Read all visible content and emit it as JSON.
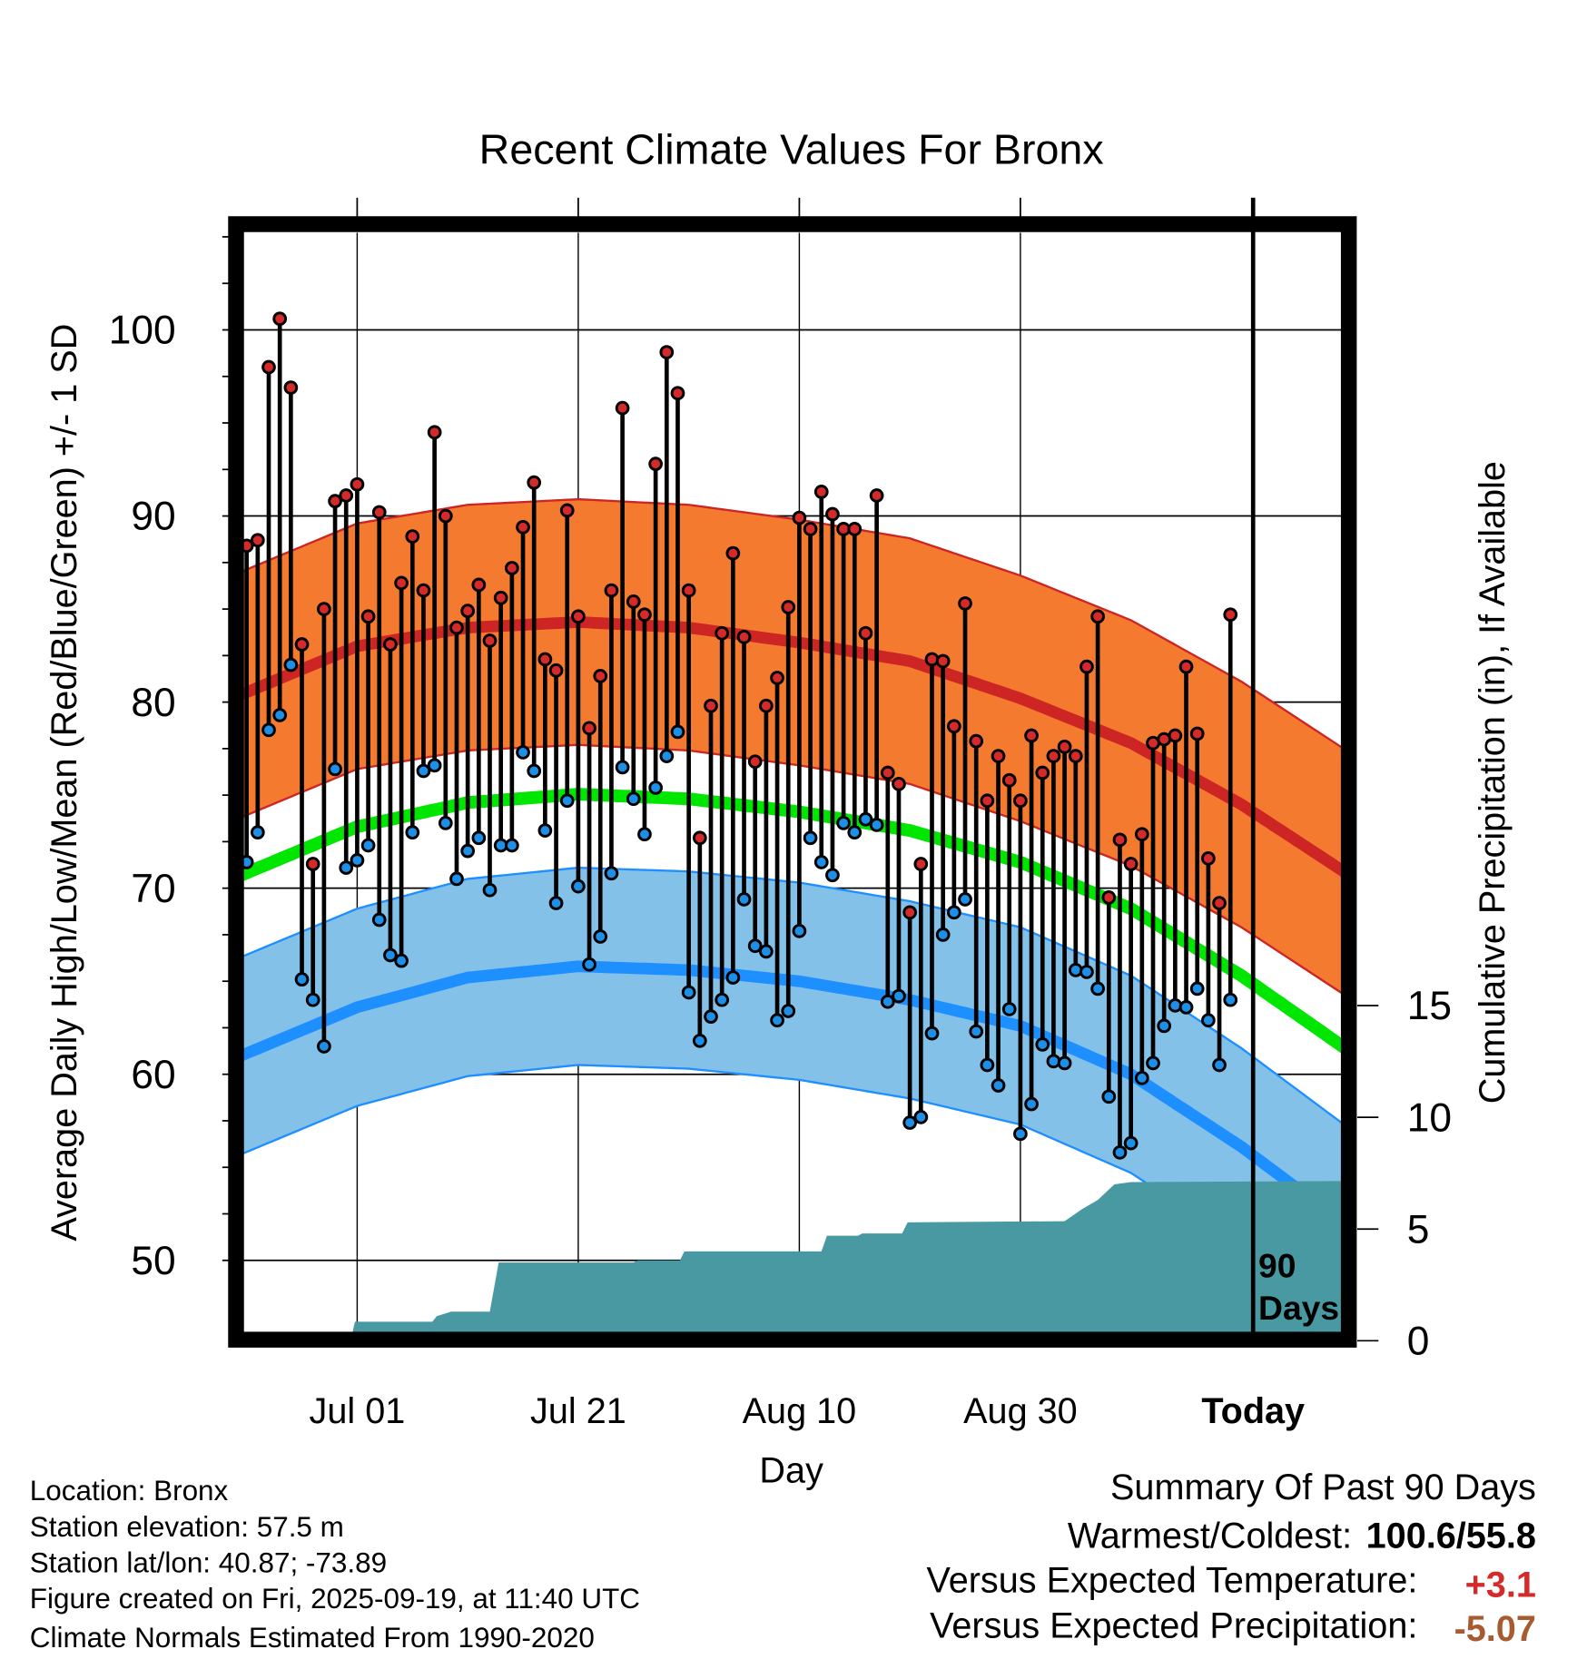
{
  "chart_data": {
    "type": "line",
    "title": "Recent Climate Values For Bronx",
    "xlabel": "Day",
    "ylabel": "Average Daily High/Low/Mean (Red/Blue/Green) +/- 1 SD",
    "y2label": "Cumulative Precipitation (in), If Available",
    "ylim": [
      46.1,
      105.7
    ],
    "y2lim": [
      0,
      28.3
    ],
    "yticks": [
      50,
      60,
      70,
      80,
      90,
      100
    ],
    "y2ticks": [
      0,
      5,
      10,
      15
    ],
    "xlim_days": [
      -0.5,
      99.5
    ],
    "xticks": [
      {
        "day": 10,
        "label": "Jul 01"
      },
      {
        "day": 30,
        "label": "Jul 21"
      },
      {
        "day": 50,
        "label": "Aug 10"
      },
      {
        "day": 70,
        "label": "Aug 30"
      },
      {
        "day": 90,
        "label": "Today"
      }
    ],
    "grid": true,
    "today_marker_label": [
      "90",
      "Days"
    ],
    "daily_high": [
      88.4,
      88.7,
      98.0,
      100.6,
      96.9,
      83.1,
      71.3,
      85.0,
      90.8,
      91.1,
      91.7,
      84.6,
      90.2,
      83.1,
      86.4,
      88.9,
      86.0,
      94.5,
      90.0,
      84.0,
      84.9,
      86.3,
      83.3,
      85.6,
      87.2,
      89.4,
      91.8,
      82.3,
      81.7,
      90.3,
      84.6,
      78.6,
      81.4,
      86.0,
      95.8,
      85.4,
      84.7,
      92.8,
      98.8,
      96.6,
      86.0,
      72.7,
      79.8,
      83.7,
      88.0,
      83.5,
      76.8,
      79.8,
      81.3,
      85.1,
      89.9,
      89.3,
      91.3,
      90.1,
      89.3,
      89.3,
      83.7,
      91.1,
      76.2,
      75.6,
      68.7,
      71.3,
      82.3,
      82.2,
      78.7,
      85.3,
      77.9,
      74.7,
      77.1,
      75.8,
      74.7,
      78.2,
      76.2,
      77.1,
      77.6,
      77.1,
      81.9,
      84.6,
      69.5,
      72.6,
      71.3,
      72.9,
      77.8,
      78.0,
      78.2,
      81.9,
      78.3,
      71.6,
      69.2,
      84.7
    ],
    "daily_low": [
      71.4,
      73.0,
      78.5,
      79.3,
      82.0,
      65.1,
      64.0,
      61.5,
      76.4,
      71.1,
      71.5,
      72.3,
      68.3,
      66.4,
      66.1,
      73.0,
      76.3,
      76.6,
      73.5,
      70.5,
      72.0,
      72.7,
      69.9,
      72.3,
      72.3,
      77.3,
      76.3,
      73.1,
      69.2,
      74.7,
      70.1,
      65.9,
      67.4,
      70.8,
      76.5,
      74.8,
      72.9,
      75.4,
      77.1,
      78.4,
      64.4,
      61.8,
      63.1,
      64.0,
      65.2,
      69.4,
      66.9,
      66.6,
      62.9,
      63.4,
      67.7,
      72.7,
      71.4,
      70.7,
      73.5,
      73.0,
      73.7,
      73.4,
      63.9,
      64.2,
      57.4,
      57.7,
      62.2,
      67.5,
      68.7,
      69.4,
      62.3,
      60.5,
      59.4,
      63.5,
      56.8,
      58.4,
      61.6,
      60.7,
      60.6,
      65.6,
      65.5,
      64.6,
      58.8,
      55.8,
      56.3,
      59.8,
      60.6,
      62.6,
      63.7,
      63.6,
      64.6,
      62.9,
      60.5,
      64.0
    ],
    "normals": {
      "days": [
        -0.5,
        10,
        20,
        30,
        40,
        50,
        60,
        70,
        80,
        90,
        99.5
      ],
      "mean_high": [
        80.4,
        83.0,
        84.0,
        84.3,
        84.0,
        83.2,
        82.2,
        80.2,
        77.8,
        74.5,
        70.8
      ],
      "mean_low": [
        61.0,
        63.6,
        65.2,
        65.8,
        65.6,
        65.0,
        64.0,
        62.6,
        60.0,
        56.1,
        51.9
      ],
      "sd_high": 6.6,
      "sd_low": 5.3
    },
    "cumulative_precip": {
      "days": [
        -0.5,
        9.4,
        9.8,
        16.8,
        17.2,
        18.5,
        22.0,
        22.8,
        35.0,
        35.4,
        39.2,
        39.6,
        52.0,
        52.5,
        55.3,
        55.7,
        59.3,
        59.8,
        74.0,
        75.6,
        77.0,
        78.5,
        80.0,
        99.5
      ],
      "values": [
        0,
        0,
        0.85,
        0.85,
        1.1,
        1.3,
        1.3,
        3.5,
        3.5,
        3.6,
        3.6,
        4.0,
        4.0,
        4.7,
        4.7,
        4.8,
        4.8,
        5.3,
        5.35,
        5.9,
        6.3,
        7.0,
        7.1,
        7.15
      ]
    },
    "colors": {
      "high_band": "#f47a30",
      "high_line": "#cd2424",
      "mean_line": "#00e600",
      "low_band": "#84c1e8",
      "low_line": "#1e8fff",
      "precip": "#4899a2",
      "high_dot": "#d42a2a",
      "low_dot": "#1e8fe6"
    }
  },
  "footer": {
    "location": "Location: Bronx",
    "elevation": "Station elevation: 57.5 m",
    "latlon": "Station lat/lon: 40.87; -73.89",
    "created": "Figure created on Fri, 2025-09-19, at 11:40 UTC",
    "normals": "Climate Normals Estimated From 1990-2020"
  },
  "summary": {
    "title": "Summary Of Past 90 Days",
    "warmest_label": "Warmest/Coldest:",
    "warmest_value": "100.6/55.8",
    "temp_label": "Versus Expected Temperature:",
    "temp_value": "+3.1",
    "temp_color": "#d42a2a",
    "precip_label": "Versus Expected Precipitation:",
    "precip_value": "-5.07",
    "precip_color": "#a85a30"
  }
}
